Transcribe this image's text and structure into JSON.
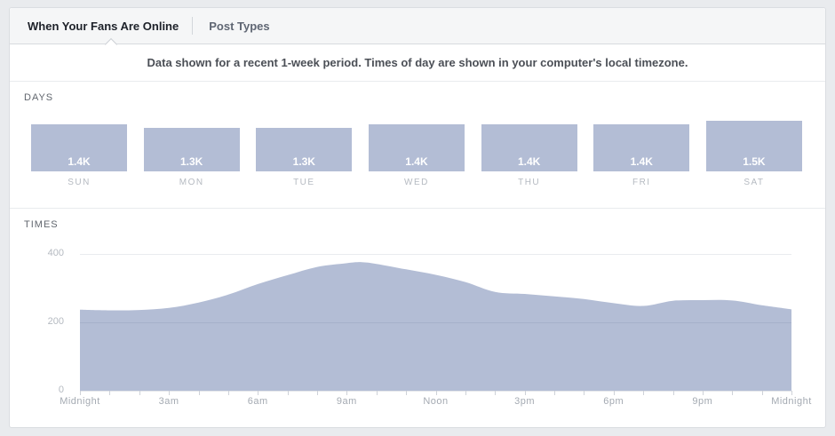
{
  "tabs": {
    "active": "When Your Fans Are Online",
    "inactive": "Post Types"
  },
  "notice": {
    "text": "Data shown for a recent 1-week period. Times of day are shown in your computer's local timezone."
  },
  "days_section": {
    "title": "DAYS"
  },
  "times_section": {
    "title": "TIMES"
  },
  "colors": {
    "page_bg": "#e9ebee",
    "card_bg": "#ffffff",
    "tabbar_bg": "#f5f6f7",
    "fill": "#b3bdd5",
    "active_tab_text": "#1d2129",
    "inactive_tab_text": "#5f6673",
    "bar_value_text": "#ffffff"
  },
  "chart_data": [
    {
      "type": "bar",
      "title": "DAYS",
      "categories": [
        "SUN",
        "MON",
        "TUE",
        "WED",
        "THU",
        "FRI",
        "SAT"
      ],
      "values": [
        1400,
        1300,
        1300,
        1400,
        1400,
        1400,
        1500
      ],
      "value_labels": [
        "1.4K",
        "1.3K",
        "1.3K",
        "1.4K",
        "1.4K",
        "1.4K",
        "1.5K"
      ],
      "bar_color": "#b3bdd5",
      "grid": false
    },
    {
      "type": "area",
      "title": "TIMES",
      "x_unit": "hour_of_day",
      "x": [
        0,
        1,
        2,
        3,
        4,
        5,
        6,
        7,
        8,
        9,
        9.5,
        10,
        11,
        12,
        13,
        14,
        15,
        16,
        17,
        18,
        19,
        20,
        21,
        22,
        23,
        24
      ],
      "values": [
        237,
        235,
        236,
        242,
        258,
        281,
        312,
        338,
        362,
        373,
        376,
        371,
        355,
        339,
        318,
        289,
        283,
        276,
        268,
        256,
        248,
        263,
        265,
        264,
        250,
        238
      ],
      "x_tick_hours": [
        0,
        3,
        6,
        9,
        12,
        15,
        18,
        21,
        24
      ],
      "x_tick_labels": [
        "Midnight",
        "3am",
        "6am",
        "9am",
        "Noon",
        "3pm",
        "6pm",
        "9pm",
        "Midnight"
      ],
      "yticks": [
        400,
        200,
        0
      ],
      "ylim": [
        0,
        400
      ],
      "xlim": [
        0,
        24
      ],
      "grid": true,
      "area_color": "#b3bdd5",
      "legend": "none"
    }
  ]
}
